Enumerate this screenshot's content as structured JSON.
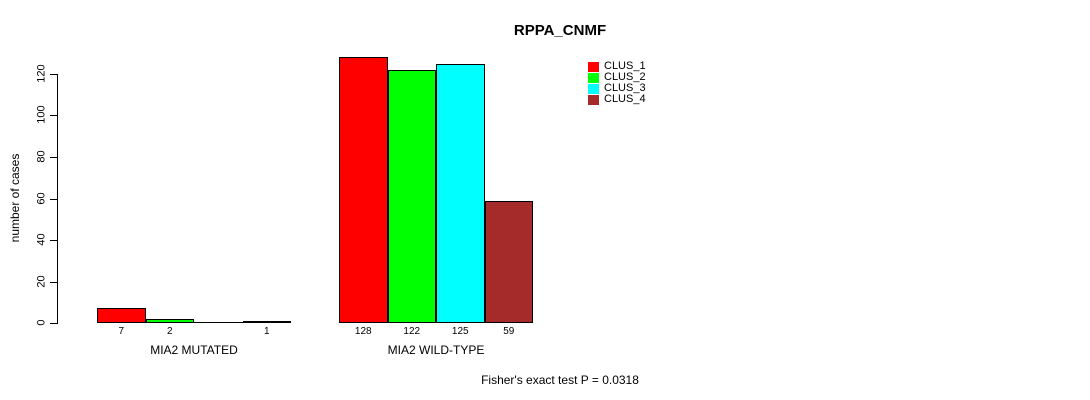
{
  "chart_data": {
    "type": "bar",
    "title": "RPPA_CNMF",
    "ylabel": "number of cases",
    "annotation": "Fisher's exact test P = 0.0318",
    "groups": [
      "MIA2 MUTATED",
      "MIA2 WILD-TYPE"
    ],
    "series": [
      {
        "name": "CLUS_1",
        "color": "#ff0000",
        "values": [
          7,
          128
        ]
      },
      {
        "name": "CLUS_2",
        "color": "#00ff00",
        "values": [
          2,
          122
        ]
      },
      {
        "name": "CLUS_3",
        "color": "#00ffff",
        "values": [
          0,
          125
        ]
      },
      {
        "name": "CLUS_4",
        "color": "#a52a2a",
        "values": [
          1,
          59
        ]
      }
    ],
    "visible_bar_labels": [
      "7",
      "2",
      "1",
      "128",
      "122",
      "125",
      "59"
    ],
    "yticks": [
      0,
      20,
      40,
      60,
      80,
      100,
      120
    ],
    "ylim": [
      0,
      128
    ],
    "grid": false,
    "legend_position": "right-of-plot"
  }
}
